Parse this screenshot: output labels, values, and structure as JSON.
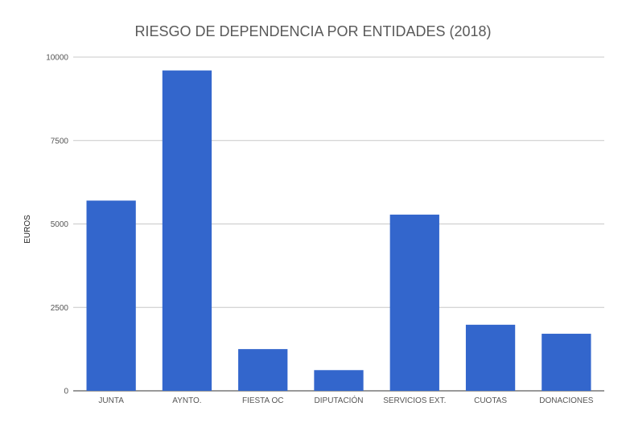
{
  "chart_data": {
    "type": "bar",
    "title": "RIESGO DE DEPENDENCIA POR ENTIDADES (2018)",
    "xlabel": "",
    "ylabel": "EUROS",
    "categories": [
      "JUNTA",
      "AYNTO.",
      "FIESTA OC",
      "DIPUTACIÓN",
      "SERVICIOS EXT.",
      "CUOTAS",
      "DONACIONES"
    ],
    "values": [
      5700,
      9600,
      1250,
      620,
      5280,
      1980,
      1710
    ],
    "ylim": [
      0,
      10000
    ],
    "yticks": [
      "0",
      "2500",
      "5000",
      "7500",
      "10000"
    ],
    "grid": true,
    "legend": "none",
    "bar_color": "#3366cc"
  }
}
